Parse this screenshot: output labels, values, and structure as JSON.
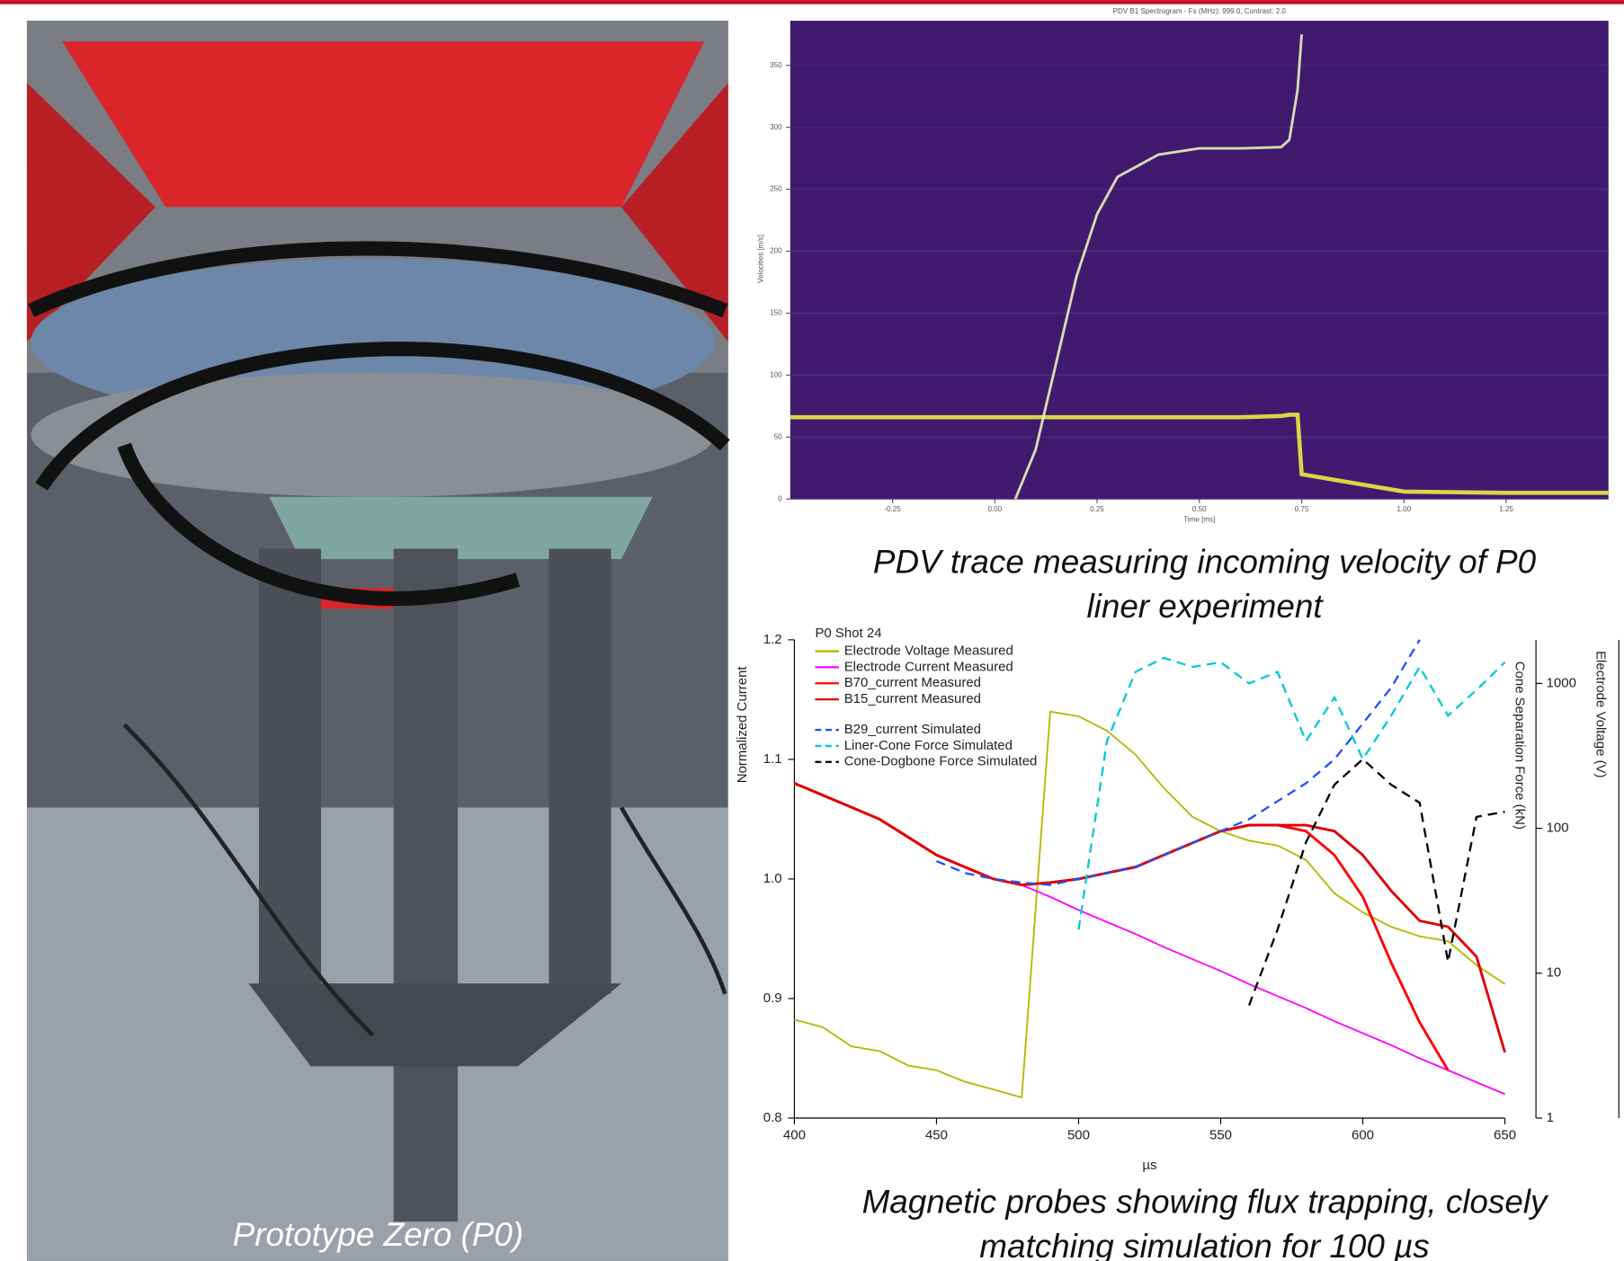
{
  "photo_caption": "Prototype Zero (P0)",
  "captions": [
    {
      "lines": [
        "PDV trace measuring incoming velocity of P0",
        "liner experiment"
      ]
    },
    {
      "lines": [
        "Magnetic probes showing flux trapping, closely",
        "matching simulation for 100 µs"
      ]
    }
  ],
  "chart_data": [
    {
      "type": "spectrogram",
      "title": "PDV B1 Spectrogram - Fs (MHz): 999.0, Contrast: 2.0",
      "xlabel": "Time [ms]",
      "ylabel": "Velocities [m/s]",
      "background": "#3f1a6e",
      "xlim": [
        -0.5,
        1.5
      ],
      "ylim": [
        0,
        386
      ],
      "xticks": [
        -0.25,
        {
          "value": 0,
          "label": "0.00"
        },
        0.25,
        {
          "value": 0.5,
          "label": "0.50"
        },
        0.75,
        {
          "value": 1,
          "label": "1.00"
        },
        1.25
      ],
      "yticks": [
        0,
        50,
        100,
        150,
        200,
        250,
        300,
        350
      ],
      "x": [
        -0.5,
        -0.25,
        0,
        0.05,
        0.1,
        0.15,
        0.2,
        0.25,
        0.3,
        0.4,
        0.5,
        0.6,
        0.7,
        0.72,
        0.74,
        0.75,
        1.0,
        1.25,
        1.5
      ],
      "series": [
        {
          "color": "#e8ec40",
          "values": [
            66,
            66,
            66,
            66,
            66,
            66,
            66,
            66,
            66,
            66,
            66,
            66,
            67,
            68,
            68,
            20,
            6,
            5,
            5
          ]
        },
        {
          "color": "#e6f2b8",
          "values": [
            null,
            null,
            null,
            0,
            40,
            110,
            180,
            230,
            260,
            278,
            283,
            283,
            284,
            290,
            330,
            375,
            null,
            null,
            null
          ]
        }
      ]
    },
    {
      "type": "line",
      "legend_title": "P0 Shot 24",
      "xlabel": "µs",
      "ylabel": "Normalized Current",
      "y2label": "Cone Separation Force (kN)",
      "y3label": "Electrode Voltage (V)",
      "xlim": [
        400,
        650
      ],
      "ylim": [
        0.8,
        1.2
      ],
      "y2lim": [
        1,
        2000
      ],
      "y2log": true,
      "y3lim": [
        0,
        100
      ],
      "xticks": [
        400,
        450,
        500,
        550,
        600,
        650
      ],
      "yticks": [
        0.8,
        0.9,
        {
          "value": 1,
          "label": "1.0"
        },
        1.1,
        1.2
      ],
      "y2ticks": [
        1,
        10,
        100,
        1000
      ],
      "x": [
        400,
        410,
        420,
        430,
        440,
        450,
        460,
        470,
        480,
        490,
        500,
        510,
        520,
        530,
        540,
        550,
        560,
        570,
        580,
        590,
        600,
        610,
        620,
        630,
        640,
        650
      ],
      "series": [
        {
          "name": "Electrode Voltage Measured",
          "color": "#b5b800",
          "axis": "y3",
          "values": [
            20.6,
            19,
            15,
            14,
            11,
            10,
            7.6,
            6,
            4.3,
            85,
            84,
            81,
            76,
            69,
            63,
            60,
            58,
            57,
            54,
            47,
            43,
            40,
            38,
            37,
            32,
            28
          ]
        },
        {
          "name": "Electrode Current Measured",
          "color": "#ff00ff",
          "values": [
            1.08,
            1.07,
            1.06,
            1.05,
            1.035,
            1.02,
            1.01,
            1.0,
            0.995,
            0.985,
            0.974,
            0.964,
            0.954,
            0.943,
            0.933,
            0.923,
            0.912,
            0.902,
            0.892,
            0.881,
            0.871,
            0.861,
            0.85,
            0.84,
            0.83,
            0.82
          ]
        },
        {
          "name": "B70_current Measured",
          "color": "#ff0000",
          "values": [
            1.08,
            1.07,
            1.06,
            1.05,
            1.035,
            1.02,
            1.01,
            1.0,
            0.995,
            0.997,
            1.0,
            1.005,
            1.01,
            1.02,
            1.03,
            1.04,
            1.045,
            1.045,
            1.04,
            1.02,
            0.985,
            0.93,
            0.88,
            0.84,
            null,
            null
          ]
        },
        {
          "name": "B15_current Measured",
          "color": "#e00000",
          "values": [
            1.08,
            1.07,
            1.06,
            1.05,
            1.035,
            1.02,
            1.01,
            1.0,
            0.995,
            0.997,
            1.0,
            1.005,
            1.01,
            1.02,
            1.03,
            1.04,
            1.045,
            1.045,
            1.045,
            1.04,
            1.02,
            0.99,
            0.965,
            0.96,
            0.935,
            0.855
          ]
        },
        {
          "name": "B29_current Simulated",
          "color": "#1f4fff",
          "dash": true,
          "values": [
            null,
            null,
            null,
            null,
            null,
            1.015,
            1.005,
            1.0,
            0.997,
            0.995,
            1.0,
            1.005,
            1.01,
            1.02,
            1.03,
            1.04,
            1.05,
            1.065,
            1.08,
            1.1,
            1.13,
            1.16,
            1.2,
            null,
            null,
            null
          ]
        },
        {
          "name": "Liner-Cone Force Simulated",
          "color": "#00c8d8",
          "dash": true,
          "axis": "y2",
          "values": [
            null,
            null,
            null,
            null,
            null,
            null,
            null,
            null,
            null,
            null,
            20,
            400,
            1200,
            1500,
            1300,
            1400,
            1000,
            1200,
            400,
            800,
            300,
            600,
            1300,
            600,
            900,
            1400
          ]
        },
        {
          "name": "Cone-Dogbone Force Simulated",
          "color": "#000000",
          "dash": true,
          "axis": "y2",
          "values": [
            null,
            null,
            null,
            null,
            null,
            null,
            null,
            null,
            null,
            null,
            null,
            null,
            null,
            null,
            null,
            null,
            6,
            20,
            80,
            200,
            300,
            200,
            150,
            12,
            120,
            130
          ]
        }
      ]
    }
  ]
}
